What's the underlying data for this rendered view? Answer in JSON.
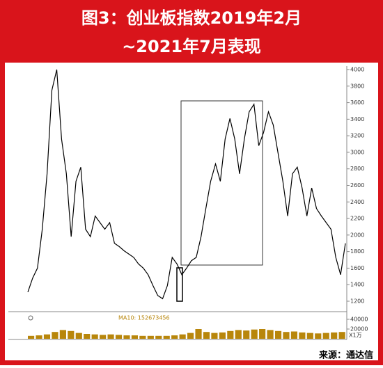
{
  "chart_data": {
    "type": "line",
    "title": "图3：创业板指数2019年2月",
    "subtitle": "~2021年7月表现",
    "values": [
      1310,
      1480,
      1600,
      2070,
      2740,
      3750,
      4000,
      3160,
      2740,
      1980,
      2650,
      2820,
      2070,
      1980,
      2230,
      2150,
      2070,
      2150,
      1900,
      1860,
      1810,
      1770,
      1730,
      1650,
      1600,
      1520,
      1390,
      1270,
      1230,
      1390,
      1730,
      1650,
      1520,
      1600,
      1690,
      1730,
      1980,
      2320,
      2650,
      2860,
      2650,
      3160,
      3410,
      3160,
      2740,
      3160,
      3490,
      3580,
      3080,
      3240,
      3490,
      3330,
      2990,
      2650,
      2230,
      2740,
      2820,
      2570,
      2230,
      2570,
      2320,
      2230,
      2150,
      2070,
      1730,
      1520,
      1900
    ],
    "color": "#000000",
    "ylim": [
      1200,
      4000
    ],
    "yticks": [
      1200,
      1400,
      1600,
      1800,
      2000,
      2200,
      2400,
      2600,
      2800,
      3000,
      3200,
      3400,
      3600,
      3800,
      4000
    ],
    "volume": {
      "label": "MA10: 152673456",
      "unit": "X1万",
      "color": "#b8860b",
      "values": [
        6000,
        7000,
        9000,
        14000,
        18000,
        16000,
        12000,
        10000,
        9000,
        8000,
        9000,
        8000,
        7000,
        7000,
        6000,
        6000,
        6000,
        6000,
        7000,
        9000,
        12000,
        20000,
        14000,
        12000,
        13000,
        16000,
        18000,
        17000,
        19000,
        20000,
        18000,
        16000,
        14000,
        15000,
        13000,
        12000,
        11000,
        12000,
        13000,
        14000
      ],
      "ylim": [
        0,
        40000
      ],
      "yticks": [
        20000,
        40000
      ]
    },
    "source": "来源：通达信"
  }
}
